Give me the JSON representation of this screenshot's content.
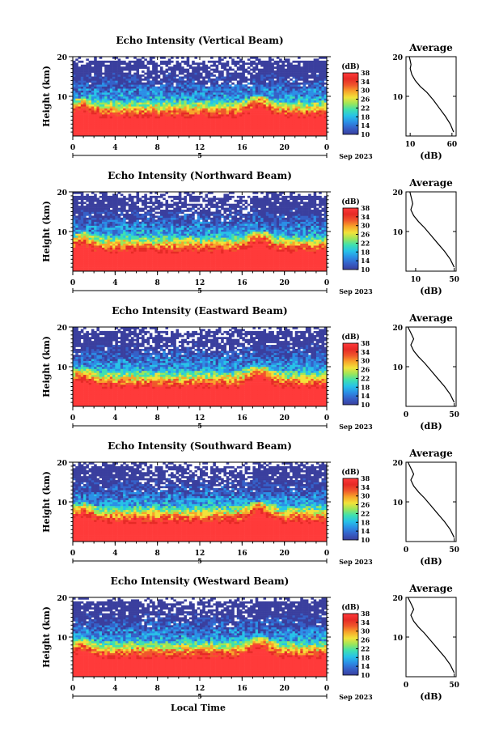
{
  "x_axis_label": "Local Time",
  "date_marker": "5",
  "date_suffix": "Sep 2023",
  "colorbar": {
    "unit_label": "(dB)",
    "ticks": [
      "10",
      "14",
      "18",
      "22",
      "26",
      "30",
      "34",
      "38"
    ],
    "range": [
      10,
      38
    ],
    "colors": [
      "#3a3f9e",
      "#3560c8",
      "#2b8fe6",
      "#27c2e8",
      "#3fe0b0",
      "#9be65a",
      "#f2e23a",
      "#f7a52a",
      "#f0562b",
      "#e62a26",
      "#ff3a3a"
    ]
  },
  "average_panel": {
    "title": "Average",
    "xlabel": "(dB)"
  },
  "chart_data": [
    {
      "type": "heatmap",
      "title": "Echo Intensity (Vertical Beam)",
      "xlabel": "Local Time",
      "ylabel": "Height (km)",
      "xlim": [
        0,
        24
      ],
      "ylim": [
        0,
        20
      ],
      "xticks": [
        "0",
        "4",
        "8",
        "12",
        "16",
        "20",
        "0"
      ],
      "yticks": [
        "10",
        "20"
      ],
      "zlim": [
        10,
        38
      ],
      "profile": {
        "x": [
          62,
          58,
          52,
          45,
          38,
          30,
          22,
          16,
          12,
          10,
          11,
          10,
          9
        ],
        "y": [
          1,
          3,
          5,
          7,
          9,
          11,
          12.5,
          14,
          15.5,
          17,
          18,
          19,
          20
        ],
        "xticks": [
          "10",
          "60"
        ],
        "xlim": [
          5,
          65
        ]
      }
    },
    {
      "type": "heatmap",
      "title": "Echo Intensity (Northward Beam)",
      "xlabel": "Local Time",
      "ylabel": "Height (km)",
      "xlim": [
        0,
        24
      ],
      "ylim": [
        0,
        20
      ],
      "xticks": [
        "0",
        "4",
        "8",
        "12",
        "16",
        "20",
        "0"
      ],
      "yticks": [
        "10",
        "20"
      ],
      "zlim": [
        10,
        38
      ],
      "profile": {
        "x": [
          50,
          46,
          40,
          33,
          26,
          19,
          13,
          8,
          5,
          7,
          6,
          5,
          4
        ],
        "y": [
          1,
          3,
          5,
          7,
          9,
          11,
          12.5,
          14,
          15.5,
          17,
          18,
          19,
          20
        ],
        "xticks": [
          "10",
          "50"
        ],
        "xlim": [
          0,
          52
        ]
      }
    },
    {
      "type": "heatmap",
      "title": "Echo Intensity (Eastward Beam)",
      "xlabel": "Local Time",
      "ylabel": "Height (km)",
      "xlim": [
        0,
        24
      ],
      "ylim": [
        0,
        20
      ],
      "xticks": [
        "0",
        "4",
        "8",
        "12",
        "16",
        "20",
        "0"
      ],
      "yticks": [
        "10",
        "20"
      ],
      "zlim": [
        10,
        38
      ],
      "profile": {
        "x": [
          50,
          46,
          40,
          33,
          26,
          19,
          13,
          8,
          5,
          8,
          6,
          4,
          2
        ],
        "y": [
          1,
          3,
          5,
          7,
          9,
          11,
          12.5,
          14,
          15.5,
          17,
          18,
          19,
          20
        ],
        "xticks": [
          "0",
          "50"
        ],
        "xlim": [
          0,
          52
        ]
      }
    },
    {
      "type": "heatmap",
      "title": "Echo Intensity (Southward Beam)",
      "xlabel": "Local Time",
      "ylabel": "Height (km)",
      "xlim": [
        0,
        24
      ],
      "ylim": [
        0,
        20
      ],
      "xticks": [
        "0",
        "4",
        "8",
        "12",
        "16",
        "20",
        "0"
      ],
      "yticks": [
        "10",
        "20"
      ],
      "zlim": [
        10,
        38
      ],
      "profile": {
        "x": [
          50,
          46,
          40,
          33,
          26,
          19,
          13,
          8,
          5,
          8,
          6,
          4,
          2
        ],
        "y": [
          1,
          3,
          5,
          7,
          9,
          11,
          12.5,
          14,
          15.5,
          17,
          18,
          19,
          20
        ],
        "xticks": [
          "0",
          "50"
        ],
        "xlim": [
          0,
          52
        ]
      }
    },
    {
      "type": "heatmap",
      "title": "Echo Intensity (Westward Beam)",
      "xlabel": "Local Time",
      "ylabel": "Height (km)",
      "xlim": [
        0,
        24
      ],
      "ylim": [
        0,
        20
      ],
      "xticks": [
        "0",
        "4",
        "8",
        "12",
        "16",
        "20",
        "0"
      ],
      "yticks": [
        "10",
        "20"
      ],
      "zlim": [
        10,
        38
      ],
      "profile": {
        "x": [
          50,
          46,
          40,
          33,
          26,
          19,
          13,
          8,
          5,
          8,
          6,
          4,
          2
        ],
        "y": [
          1,
          3,
          5,
          7,
          9,
          11,
          12.5,
          14,
          15.5,
          17,
          18,
          19,
          20
        ],
        "xticks": [
          "0",
          "50"
        ],
        "xlim": [
          0,
          52
        ]
      }
    }
  ]
}
